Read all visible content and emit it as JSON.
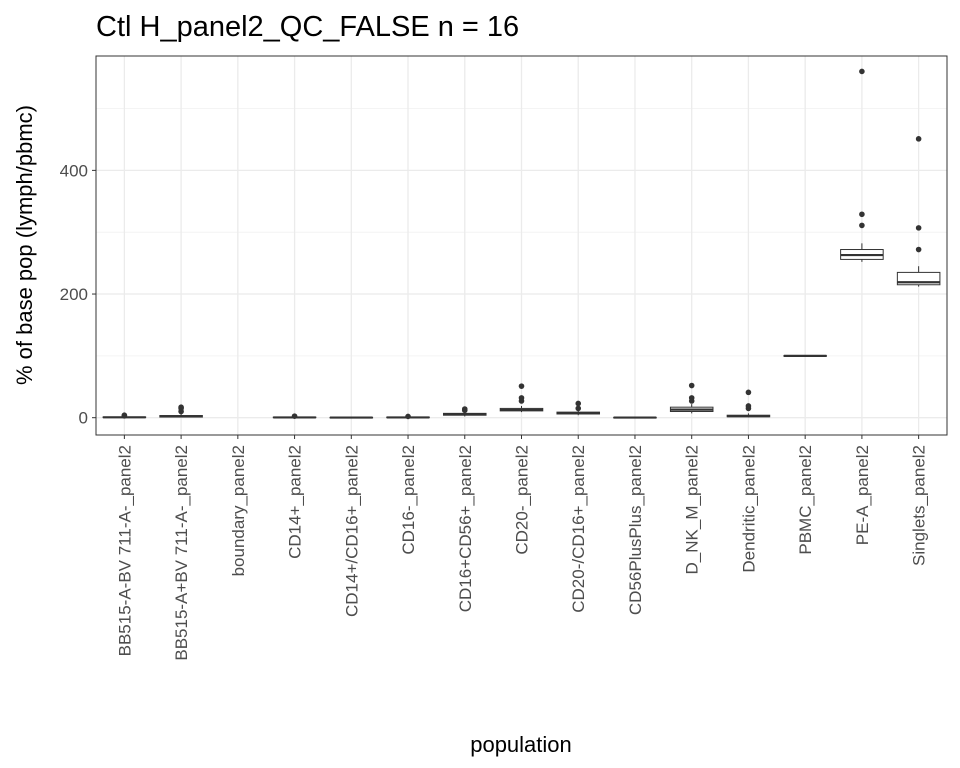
{
  "chart_data": {
    "type": "box",
    "title": "Ctl H_panel2_QC_FALSE n = 16",
    "xlabel": "population",
    "ylabel": "% of base pop (lymph/pbmc)",
    "ylim": [
      -28,
      585
    ],
    "yticks": [
      0,
      200,
      400
    ],
    "grid": true,
    "colors": {
      "panel_border": "#333333",
      "grid_major": "#ebebeb",
      "grid_minor": "#f4f4f4",
      "box_line": "#333333",
      "box_fill": "#ffffff",
      "outlier": "#333333",
      "tick_text": "#4d4d4d"
    },
    "categories": [
      "BB515-A-BV 711-A-_panel2",
      "BB515-A+BV 711-A-_panel2",
      "boundary_panel2",
      "CD14+_panel2",
      "CD14+/CD16+_panel2",
      "CD16-_panel2",
      "CD16+CD56+_panel2",
      "CD20-_panel2",
      "CD20-/CD16+_panel2",
      "CD56PlusPlus_panel2",
      "D_NK_M_panel2",
      "Dendritic_panel2",
      "PBMC_panel2",
      "PE-A_panel2",
      "Singlets_panel2"
    ],
    "boxes": [
      {
        "q1": 0.2,
        "median": 0.6,
        "q3": 1.2,
        "lower": 0,
        "upper": 2.2,
        "outliers": [
          3,
          4
        ]
      },
      {
        "q1": 1,
        "median": 2,
        "q3": 3.5,
        "lower": 0.5,
        "upper": 6,
        "outliers": [
          10,
          15,
          17
        ]
      },
      null,
      {
        "q1": 0.1,
        "median": 0.4,
        "q3": 0.9,
        "lower": 0,
        "upper": 1.5,
        "outliers": [
          2.5
        ]
      },
      {
        "q1": 0,
        "median": 0.2,
        "q3": 0.5,
        "lower": 0,
        "upper": 0.9,
        "outliers": []
      },
      {
        "q1": 0.1,
        "median": 0.4,
        "q3": 0.9,
        "lower": 0,
        "upper": 1.5,
        "outliers": [
          2
        ]
      },
      {
        "q1": 4,
        "median": 5.5,
        "q3": 7,
        "lower": 2,
        "upper": 10,
        "outliers": [
          12,
          14
        ]
      },
      {
        "q1": 11,
        "median": 12.5,
        "q3": 15,
        "lower": 9,
        "upper": 19,
        "outliers": [
          27,
          32,
          51
        ]
      },
      {
        "q1": 6,
        "median": 7.5,
        "q3": 9,
        "lower": 4,
        "upper": 12,
        "outliers": [
          15,
          23
        ]
      },
      {
        "q1": 0,
        "median": 0.2,
        "q3": 0.5,
        "lower": 0,
        "upper": 0.8,
        "outliers": []
      },
      {
        "q1": 10,
        "median": 13,
        "q3": 17,
        "lower": 7,
        "upper": 22,
        "outliers": [
          27,
          32,
          52
        ]
      },
      {
        "q1": 1.5,
        "median": 2.5,
        "q3": 4,
        "lower": 0.5,
        "upper": 7,
        "outliers": [
          15,
          19,
          41
        ]
      },
      {
        "q1": 99.7,
        "median": 100,
        "q3": 100.3,
        "lower": 99.5,
        "upper": 100.5,
        "outliers": []
      },
      {
        "q1": 256,
        "median": 263,
        "q3": 272,
        "lower": 252,
        "upper": 282,
        "outliers": [
          311,
          329,
          560
        ]
      },
      {
        "q1": 215,
        "median": 219,
        "q3": 235,
        "lower": 212,
        "upper": 245,
        "outliers": [
          272,
          307,
          451
        ]
      }
    ]
  }
}
